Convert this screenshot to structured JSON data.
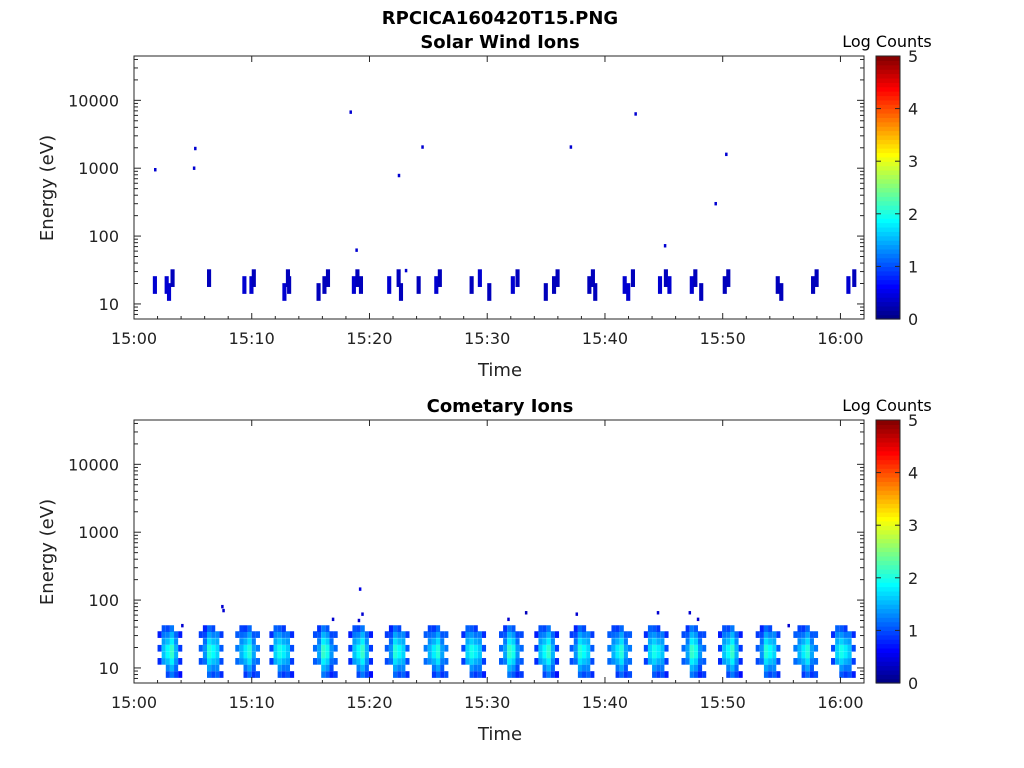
{
  "figure_title": "RPCICA160420T15.PNG",
  "colors": {
    "axis": "#262626",
    "colormap": [
      "#00007f",
      "#0000ff",
      "#007fff",
      "#00ffff",
      "#7fff7f",
      "#ffff00",
      "#ff7f00",
      "#ff0000",
      "#7f0000"
    ]
  },
  "chart_data": [
    {
      "type": "heatmap",
      "title": "Solar Wind Ions",
      "xlabel": "Time",
      "ylabel": "Energy (eV)",
      "x_ticks": [
        "15:00",
        "15:10",
        "15:20",
        "15:30",
        "15:40",
        "15:50",
        "16:00"
      ],
      "y_ticks": [
        "10",
        "100",
        "1000",
        "10000"
      ],
      "y_scale": "log",
      "y_range": [
        6,
        45000
      ],
      "x_range_minutes": [
        0,
        62
      ],
      "colorbar": {
        "label": "Log Counts",
        "ticks": [
          "0",
          "1",
          "2",
          "3",
          "4",
          "5"
        ],
        "range": [
          0,
          5
        ]
      },
      "x_unit": "minutes after 15:00",
      "cells": [
        [
          1.6,
          19,
          0.4
        ],
        [
          2.6,
          19,
          0.4
        ],
        [
          2.8,
          15,
          0.4
        ],
        [
          3.1,
          24,
          0.3
        ],
        [
          6.2,
          24,
          0.3
        ],
        [
          9.2,
          19,
          0.4
        ],
        [
          9.8,
          19,
          0.4
        ],
        [
          10.0,
          24,
          0.3
        ],
        [
          12.6,
          15,
          0.4
        ],
        [
          12.9,
          24,
          0.3
        ],
        [
          13.0,
          19,
          0.3
        ],
        [
          15.5,
          15,
          0.3
        ],
        [
          16.0,
          19,
          0.3
        ],
        [
          16.3,
          24,
          0.3
        ],
        [
          18.5,
          19,
          0.4
        ],
        [
          18.8,
          24,
          0.3
        ],
        [
          19.1,
          19,
          0.3
        ],
        [
          21.5,
          19,
          0.4
        ],
        [
          22.3,
          24,
          0.3
        ],
        [
          22.5,
          15,
          0.3
        ],
        [
          24.0,
          19,
          0.3
        ],
        [
          25.5,
          19,
          0.4
        ],
        [
          25.8,
          24,
          0.3
        ],
        [
          28.5,
          19,
          0.3
        ],
        [
          29.2,
          24,
          0.4
        ],
        [
          30.0,
          15,
          0.3
        ],
        [
          32.0,
          19,
          0.4
        ],
        [
          32.4,
          24,
          0.3
        ],
        [
          34.8,
          15,
          0.3
        ],
        [
          35.5,
          19,
          0.3
        ],
        [
          35.8,
          24,
          0.3
        ],
        [
          38.5,
          19,
          0.3
        ],
        [
          38.8,
          24,
          0.3
        ],
        [
          39.0,
          15,
          0.3
        ],
        [
          41.5,
          19,
          0.4
        ],
        [
          41.8,
          15,
          0.4
        ],
        [
          42.2,
          24,
          0.3
        ],
        [
          44.5,
          19,
          0.4
        ],
        [
          45.0,
          24,
          0.3
        ],
        [
          45.3,
          19,
          0.4
        ],
        [
          47.2,
          19,
          0.4
        ],
        [
          47.5,
          24,
          0.3
        ],
        [
          48.0,
          15,
          0.3
        ],
        [
          50.0,
          19,
          0.3
        ],
        [
          50.3,
          24,
          0.3
        ],
        [
          54.5,
          19,
          0.3
        ],
        [
          54.8,
          15,
          0.3
        ],
        [
          57.5,
          19,
          0.3
        ],
        [
          57.8,
          24,
          0.3
        ],
        [
          60.5,
          19,
          0.4
        ],
        [
          61.0,
          24,
          0.3
        ]
      ],
      "scatter": [
        [
          1.7,
          950,
          0.4
        ],
        [
          5.0,
          1000,
          0.4
        ],
        [
          5.1,
          1950,
          0.4
        ],
        [
          18.3,
          6700,
          0.4
        ],
        [
          18.8,
          62,
          0.4
        ],
        [
          22.4,
          780,
          0.4
        ],
        [
          24.4,
          2050,
          0.4
        ],
        [
          37.0,
          2050,
          0.4
        ],
        [
          42.5,
          6300,
          0.4
        ],
        [
          45.0,
          72,
          0.4
        ],
        [
          49.3,
          300,
          0.4
        ],
        [
          50.2,
          1600,
          0.4
        ],
        [
          23.0,
          31,
          0.4
        ]
      ]
    },
    {
      "type": "heatmap",
      "title": "Cometary Ions",
      "xlabel": "Time",
      "ylabel": "Energy (eV)",
      "x_ticks": [
        "15:00",
        "15:10",
        "15:20",
        "15:30",
        "15:40",
        "15:50",
        "16:00"
      ],
      "y_ticks": [
        "10",
        "100",
        "1000",
        "10000"
      ],
      "y_scale": "log",
      "y_range": [
        6,
        45000
      ],
      "x_range_minutes": [
        0,
        62
      ],
      "colorbar": {
        "label": "Log Counts",
        "ticks": [
          "0",
          "1",
          "2",
          "3",
          "4",
          "5"
        ],
        "range": [
          0,
          5
        ]
      },
      "x_unit": "minutes after 15:00",
      "bursts_start_minutes": [
        2.0,
        5.5,
        8.6,
        11.5,
        15.2,
        18.2,
        21.3,
        24.6,
        27.8,
        31.0,
        34.0,
        37.0,
        40.2,
        43.3,
        46.5,
        49.6,
        52.8,
        56.0,
        59.2
      ],
      "scatter": [
        [
          4.0,
          42,
          0.4
        ],
        [
          7.4,
          80,
          0.4
        ],
        [
          7.5,
          70,
          0.4
        ],
        [
          16.8,
          52,
          0.4
        ],
        [
          19.1,
          145,
          0.5
        ],
        [
          19.3,
          62,
          0.4
        ],
        [
          19.0,
          50,
          0.4
        ],
        [
          31.7,
          52,
          0.4
        ],
        [
          33.2,
          65,
          0.3
        ],
        [
          37.5,
          62,
          0.4
        ],
        [
          44.4,
          65,
          0.4
        ],
        [
          47.1,
          65,
          0.4
        ],
        [
          47.8,
          52,
          0.4
        ],
        [
          55.5,
          42,
          0.4
        ]
      ]
    }
  ]
}
